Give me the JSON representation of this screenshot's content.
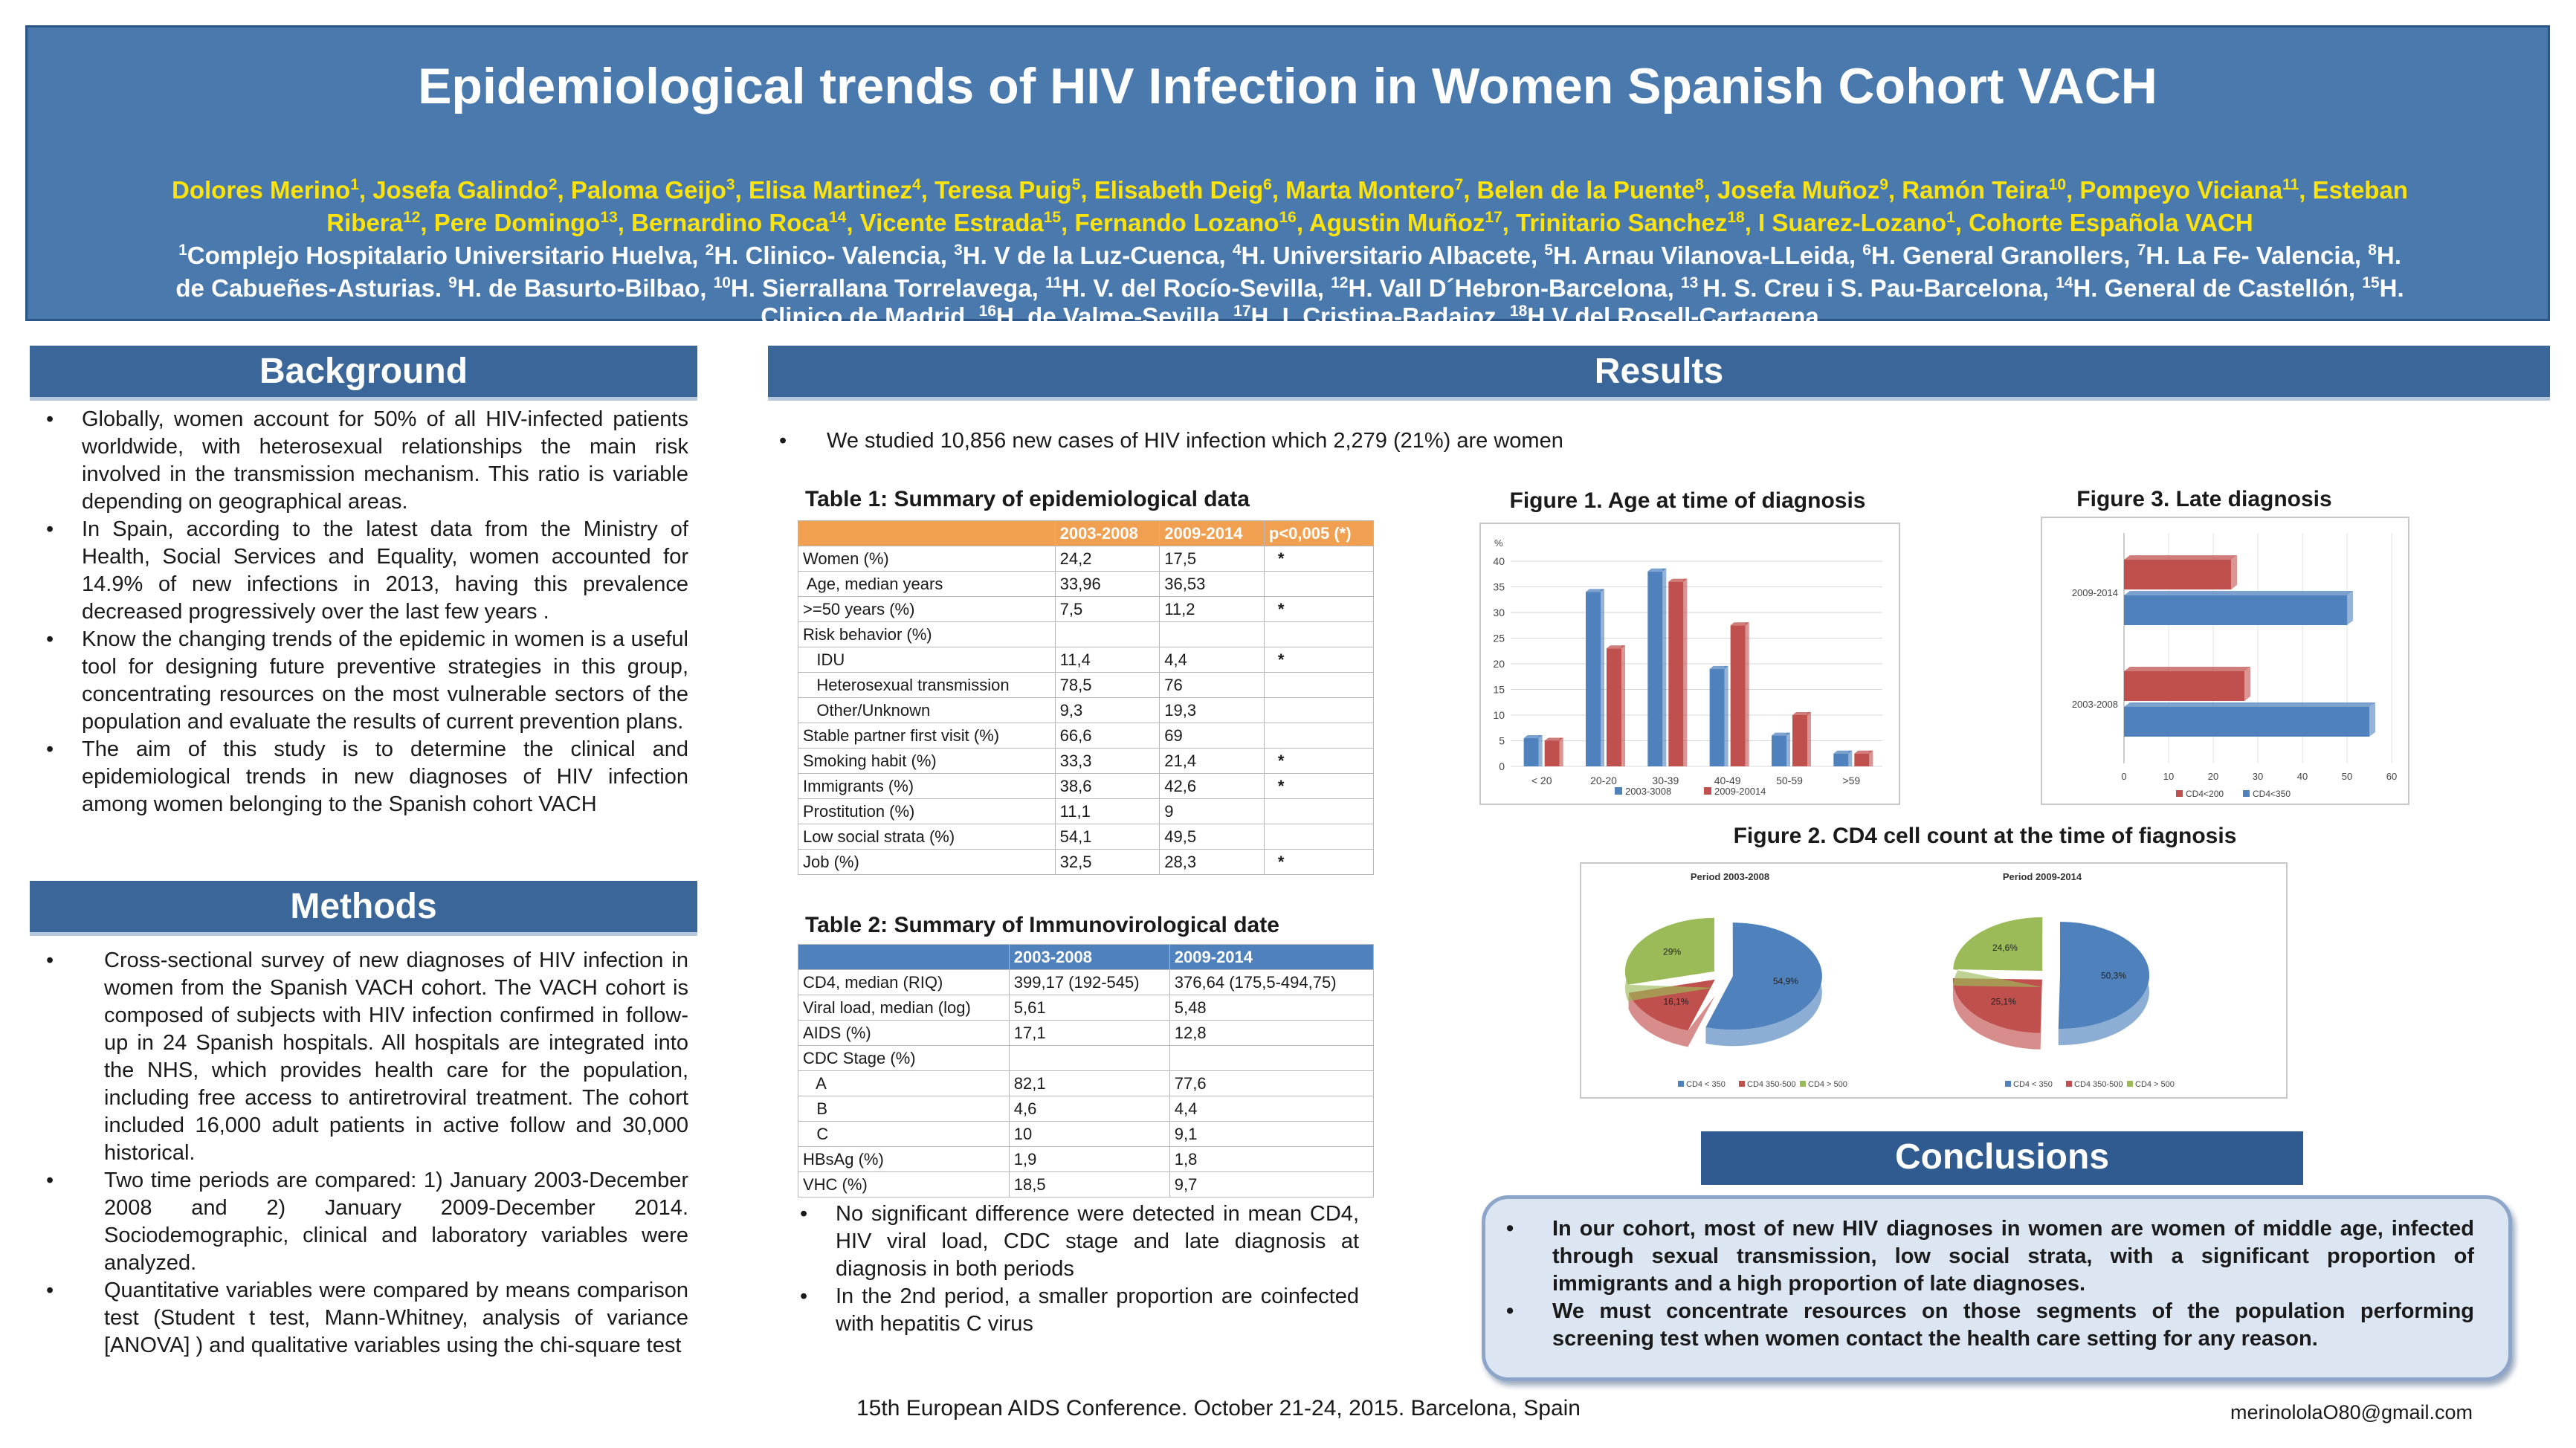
{
  "header": {
    "title": "Epidemiological trends of HIV Infection in Women Spanish Cohort VACH",
    "authors_line1": [
      [
        "Dolores Merino",
        "1"
      ],
      [
        "Josefa Galindo",
        "2"
      ],
      [
        "Paloma Geijo",
        "3"
      ],
      [
        "Elisa Martinez",
        "4"
      ],
      [
        "Teresa Puig",
        "5"
      ],
      [
        "Elisabeth Deig",
        "6"
      ],
      [
        "Marta Montero",
        "7"
      ],
      [
        "Belen de la Puente",
        "8"
      ],
      [
        "Josefa Muñoz",
        "9"
      ],
      [
        " Ramón Teira",
        "10"
      ],
      [
        "Pompeyo Viciana",
        "11"
      ]
    ],
    "authors_line1_tail": "Esteban",
    "authors_line2": [
      [
        "Ribera",
        "12"
      ],
      [
        "Pere Domingo",
        "13"
      ],
      [
        "Bernardino Roca",
        "14"
      ],
      [
        "Vicente Estrada",
        "15"
      ],
      [
        "Fernando Lozano",
        "16"
      ],
      [
        "Agustin Muñoz",
        "17"
      ],
      [
        "Trinitario Sanchez",
        "18"
      ],
      [
        "I Suarez-Lozano",
        "1"
      ]
    ],
    "authors_line2_tail": "Cohorte Española VACH",
    "affil_line1": [
      [
        "1",
        "Complejo Hospitalario Universitario Huelva, "
      ],
      [
        "2",
        "H. Clinico- Valencia, "
      ],
      [
        "3",
        "H. V de la Luz-Cuenca, "
      ],
      [
        "4",
        "H. Universitario Albacete, "
      ],
      [
        "5",
        "H. Arnau Vilanova-LLeida, "
      ],
      [
        "6",
        "H. General Granollers, "
      ],
      [
        "7",
        "H. La Fe- Valencia, "
      ],
      [
        "8",
        "H."
      ]
    ],
    "affil_line2_lead": "de Cabueñes-Asturias. ",
    "affil_line2": [
      [
        "9",
        "H. de Basurto-Bilbao, "
      ],
      [
        "10",
        "H. Sierrallana Torrelavega, "
      ],
      [
        "11",
        "H. V. del Rocío-Sevilla, "
      ],
      [
        "12",
        "H. Vall D´Hebron-Barcelona, "
      ],
      [
        "13 ",
        "H. S. Creu i S. Pau-Barcelona, "
      ],
      [
        "14",
        "H. General de Castellón, "
      ],
      [
        "15",
        "H."
      ]
    ],
    "affil_line3_lead": "Clinico de Madrid, ",
    "affil_line3": [
      [
        "16",
        "H. de Valme-Sevilla, "
      ],
      [
        "17",
        "H. I. Cristina-Badajoz, "
      ],
      [
        "18",
        "H.V del Rosell-Cartagena"
      ]
    ]
  },
  "background": {
    "heading": "Background",
    "bullets": [
      "Globally, women account for 50% of all HIV-infected patients worldwide, with heterosexual relationships the main risk involved in the transmission mechanism. This ratio is variable depending on geographical areas.",
      "In Spain, according to the latest data from the Ministry of Health, Social Services and Equality, women accounted for 14.9% of new infections in 2013, having this prevalence decreased progressively over the last few years .",
      "Know the changing trends of the epidemic in women is a useful tool for designing future preventive strategies in this group, concentrating resources on the most vulnerable sectors of the population and evaluate the results of current prevention plans.",
      "The aim of this study is to determine the clinical and epidemiological trends in new diagnoses of HIV infection among women belonging to the Spanish cohort VACH"
    ]
  },
  "methods": {
    "heading": "Methods",
    "bullets": [
      "Cross-sectional survey of new diagnoses of HIV infection in women from the Spanish VACH cohort. The VACH cohort is composed of subjects with HIV infection confirmed in follow-up in 24 Spanish hospitals. All hospitals are integrated into the NHS, which provides health care for the population, including free access to antiretroviral treatment. The cohort included 16,000 adult patients in active follow and 30,000 historical.",
      "Two time periods are compared: 1) January 2003-December 2008 and 2) January 2009-December 2014. Sociodemographic, clinical and laboratory variables were analyzed.",
      "Quantitative variables were compared by means comparison test (Student t test, Mann-Whitney, analysis of variance [ANOVA] ) and qualitative variables using the chi-square test"
    ]
  },
  "results": {
    "heading": "Results",
    "intro": "We studied 10,856 new cases of HIV infection which 2,279 (21%) are women",
    "table1": {
      "caption": "Table 1: Summary of epidemiological data",
      "header": [
        "",
        "2003-2008",
        "2009-2014",
        "p<0,005 (*)"
      ],
      "header_color": "#f0a050",
      "rows": [
        [
          "Women (%)",
          "24,2",
          "17,5",
          "*"
        ],
        [
          " Age, median years",
          "33,96",
          "36,53",
          ""
        ],
        [
          ">=50 years (%)",
          "7,5",
          "11,2",
          "*"
        ],
        [
          "Risk behavior (%)",
          "",
          "",
          ""
        ],
        [
          "   IDU",
          "11,4",
          "4,4",
          "*"
        ],
        [
          "   Heterosexual transmission",
          "78,5",
          "76",
          ""
        ],
        [
          "   Other/Unknown",
          "9,3",
          "19,3",
          ""
        ],
        [
          "Stable partner first visit (%)",
          "66,6",
          "69",
          ""
        ],
        [
          "Smoking habit (%)",
          "33,3",
          "21,4",
          "*"
        ],
        [
          "Immigrants (%)",
          "38,6",
          "42,6",
          "*"
        ],
        [
          "Prostitution (%)",
          "11,1",
          "9",
          ""
        ],
        [
          "Low social strata (%)",
          "54,1",
          "49,5",
          ""
        ],
        [
          "Job (%)",
          "32,5",
          "28,3",
          "*"
        ]
      ]
    },
    "table2": {
      "caption": "Table 2: Summary of Immunovirological date",
      "header": [
        "",
        "2003-2008",
        "2009-2014"
      ],
      "header_color": "#4f81bd",
      "rows": [
        [
          "CD4, median (RIQ)",
          "399,17 (192-545)",
          "376,64 (175,5-494,75)"
        ],
        [
          "Viral load, median (log)",
          "5,61",
          "5,48"
        ],
        [
          "AIDS (%)",
          "17,1",
          "12,8"
        ],
        [
          "CDC Stage (%)",
          "",
          ""
        ],
        [
          "   A",
          "82,1",
          "77,6"
        ],
        [
          "   B",
          "4,6",
          "4,4"
        ],
        [
          "   C",
          "10",
          "9,1"
        ],
        [
          "HBsAg (%)",
          "1,9",
          "1,8"
        ],
        [
          "VHC (%)",
          "18,5",
          "9,7"
        ]
      ]
    },
    "table2_notes": [
      "No significant difference were detected in mean CD4, HIV viral load, CDC stage and late diagnosis at diagnosis in both periods",
      "In the 2nd period, a smaller proportion are coinfected with hepatitis C virus"
    ]
  },
  "figure1_caption": "Figure 1. Age at time of diagnosis",
  "figure2_caption": "Figure 2. CD4 cell count at the time of fiagnosis",
  "figure3_caption": "Figure 3. Late diagnosis",
  "chart_data": [
    {
      "type": "bar",
      "id": "figure1",
      "title": "Figure 1. Age at time of diagnosis",
      "ylabel": "%",
      "categories": [
        "< 20",
        "20-20",
        "30-39",
        "40-49",
        "50-59",
        ">59"
      ],
      "series": [
        {
          "name": "2003-3008",
          "values": [
            5.5,
            34,
            38,
            19,
            6,
            2.5
          ],
          "color": "#4f81bd"
        },
        {
          "name": "2009-20014",
          "values": [
            5,
            23,
            36,
            27.5,
            10,
            2.5
          ],
          "color": "#c0504d"
        }
      ],
      "ylim": [
        0,
        40
      ],
      "yticks": [
        "0",
        "5",
        "10",
        "15",
        "20",
        "25",
        "30",
        "35",
        "40"
      ],
      "legend": "bottom"
    },
    {
      "type": "pie",
      "id": "figure2",
      "title": "Figure 2. CD4 cell count at the time of fiagnosis",
      "pies": [
        {
          "name": "Period 2003-2008",
          "labels": [
            "CD4 < 350",
            "CD4 350-500",
            "CD4 > 500"
          ],
          "values": [
            54.9,
            16.1,
            29
          ],
          "value_labels": [
            "54,9%",
            "16,1%",
            "29%"
          ]
        },
        {
          "name": "Period 2009-2014",
          "labels": [
            "CD4 < 350",
            "CD4 350-500",
            "CD4 > 500"
          ],
          "values": [
            50.3,
            25.1,
            24.6
          ],
          "value_labels": [
            "50,3%",
            "25,1%",
            "24,6%"
          ]
        }
      ],
      "colors": [
        "#4f81bd",
        "#c0504d",
        "#9bbb59"
      ],
      "legend": "bottom"
    },
    {
      "type": "bar",
      "orientation": "horizontal",
      "id": "figure3",
      "title": "Figure 3. Late diagnosis",
      "categories": [
        "2003-2008",
        "2009-2014"
      ],
      "series": [
        {
          "name": "CD4<200",
          "values": [
            27,
            24
          ],
          "color": "#c0504d"
        },
        {
          "name": "CD4<350",
          "values": [
            55,
            50
          ],
          "color": "#4f81bd"
        }
      ],
      "xlim": [
        0,
        60
      ],
      "xticks": [
        "0",
        "10",
        "20",
        "30",
        "40",
        "50",
        "60"
      ],
      "legend": "bottom"
    }
  ],
  "conclusions": {
    "heading": "Conclusions",
    "bullets": [
      "In our cohort, most of new HIV diagnoses in women are women of middle age, infected through sexual transmission, low social strata, with a significant proportion of immigrants and a high proportion of late diagnoses.",
      " We must concentrate resources on those segments of the population performing screening test when women contact the health care setting for any reason."
    ]
  },
  "footer": {
    "conference": "15th European AIDS Conference. October 21-24, 2015. Barcelona, Spain",
    "email": "merinololaO80@gmail.com"
  }
}
